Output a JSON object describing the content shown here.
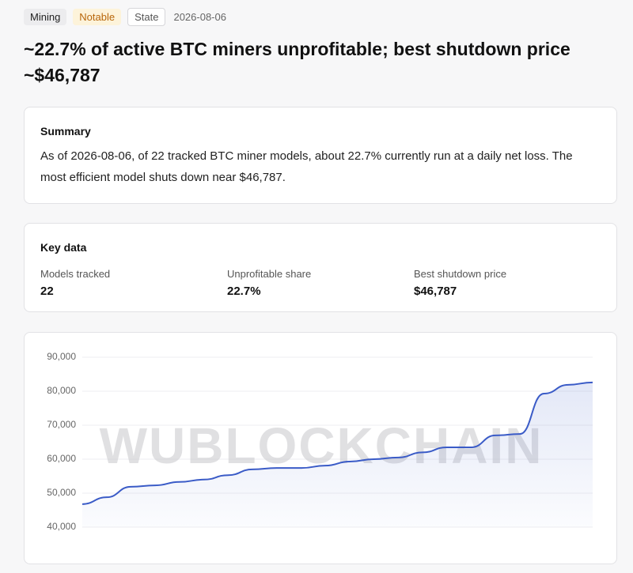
{
  "tags": [
    "Mining",
    "Notable",
    "State"
  ],
  "date": "2026-08-06",
  "title": "~22.7% of active BTC miners unprofitable; best shutdown price ~$46,787",
  "summary": {
    "heading": "Summary",
    "text": "As of 2026-08-06, of 22 tracked BTC miner models, about 22.7% currently run at a daily net loss. The most efficient model shuts down near $46,787."
  },
  "key_data": {
    "heading": "Key data",
    "items": [
      {
        "label": "Models tracked",
        "value": "22"
      },
      {
        "label": "Unprofitable share",
        "value": "22.7%"
      },
      {
        "label": "Best shutdown price",
        "value": "$46,787"
      }
    ]
  },
  "chart_data": {
    "type": "line",
    "watermark": "WUBLOCKCHAIN",
    "color": "#3a5bc7",
    "values": [
      46787,
      48800,
      51900,
      52300,
      53300,
      54000,
      55300,
      57000,
      57400,
      57400,
      58100,
      59300,
      60000,
      60500,
      62000,
      63500,
      63500,
      67000,
      67400,
      79300,
      81900,
      82600
    ],
    "ylim": [
      40000,
      90000
    ],
    "yticks": [
      {
        "value": 40000,
        "label": "40,000"
      },
      {
        "value": 50000,
        "label": "50,000"
      },
      {
        "value": 60000,
        "label": "60,000"
      },
      {
        "value": 70000,
        "label": "70,000"
      },
      {
        "value": 80000,
        "label": "80,000"
      },
      {
        "value": 90000,
        "label": "90,000"
      }
    ],
    "grid": true
  }
}
